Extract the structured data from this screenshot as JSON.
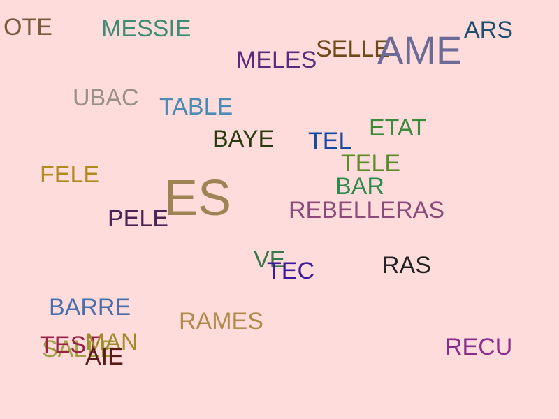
{
  "words": [
    {
      "text": "OTE",
      "color": "#7a5a3c"
    },
    {
      "text": "MESSIE",
      "color": "#3f8a72"
    },
    {
      "text": "MELES",
      "color": "#5b2a7a"
    },
    {
      "text": "SELLE",
      "color": "#6e4a1a"
    },
    {
      "text": "AME",
      "color": "#6c6a96"
    },
    {
      "text": "ARS",
      "color": "#1e4f6e"
    },
    {
      "text": "UBAC",
      "color": "#999088"
    },
    {
      "text": "TABLE",
      "color": "#4a8ab3"
    },
    {
      "text": "ETAT",
      "color": "#3a8a3a"
    },
    {
      "text": "BAYE",
      "color": "#2a3a10"
    },
    {
      "text": "TEL",
      "color": "#144aa0"
    },
    {
      "text": "TELE",
      "color": "#5a8a2a"
    },
    {
      "text": "FELE",
      "color": "#b08a1a"
    },
    {
      "text": "ES",
      "color": "#9e8454"
    },
    {
      "text": "BAR",
      "color": "#2e8a4a"
    },
    {
      "text": "REBELLERAS",
      "color": "#8a4a7a"
    },
    {
      "text": "PELE",
      "color": "#4a2452"
    },
    {
      "text": "VE",
      "color": "#3a7a4a"
    },
    {
      "text": "TEC",
      "color": "#3a1a9a"
    },
    {
      "text": "RAS",
      "color": "#222222"
    },
    {
      "text": "BARRE",
      "color": "#4a6eaa"
    },
    {
      "text": "RAMES",
      "color": "#b08a4a"
    },
    {
      "text": "TEST",
      "color": "#9a2246"
    },
    {
      "text": "SALLE",
      "color": "#a0a040"
    },
    {
      "text": "MAN",
      "color": "#a08a2a"
    },
    {
      "text": "AIE",
      "color": "#5a1a1a"
    },
    {
      "text": "RECU",
      "color": "#8a2a8a"
    }
  ]
}
